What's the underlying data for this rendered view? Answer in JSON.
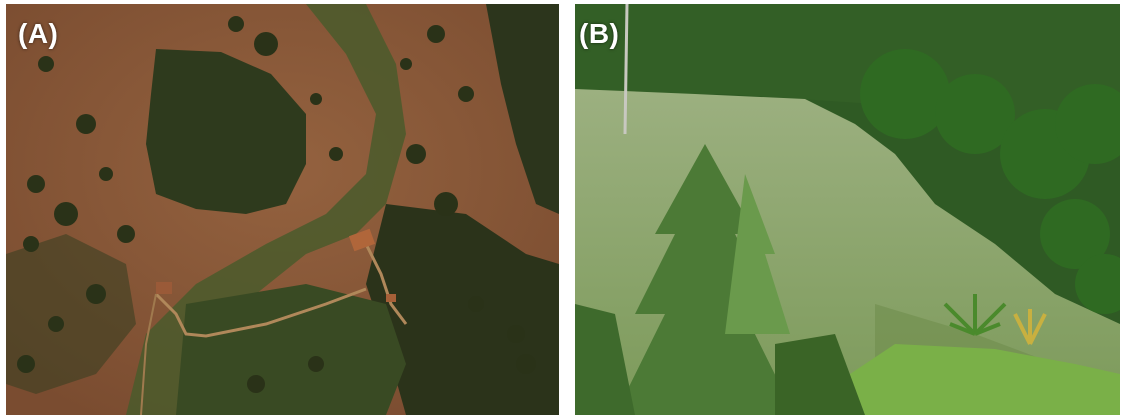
{
  "panels": [
    {
      "label": "(A)"
    },
    {
      "label": "(B)"
    }
  ],
  "colors": {
    "soil": "#8a5a3c",
    "forest": "#2f3a1e",
    "grass": "#8fa86a",
    "tree": "#3c6a2a",
    "roof": "#b0663a"
  }
}
